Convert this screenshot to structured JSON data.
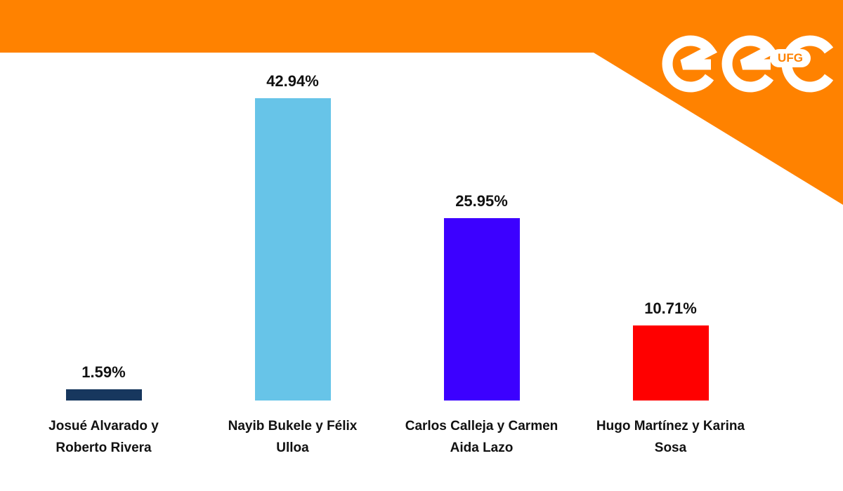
{
  "chart_data": {
    "type": "bar",
    "logo": "UFG",
    "categories": [
      "Josué Alvarado y Roberto Rivera",
      "Nayib Bukele y Félix Ulloa",
      "Carlos Calleja y Carmen Aida Lazo",
      "Hugo Martínez y Karina Sosa"
    ],
    "values": [
      1.59,
      42.94,
      25.95,
      10.71
    ],
    "value_labels": [
      "1.59%",
      "42.94%",
      "25.95%",
      "10.71%"
    ],
    "colors": [
      "#17375e",
      "#67c4e8",
      "#3c00ff",
      "#ff0000"
    ]
  }
}
